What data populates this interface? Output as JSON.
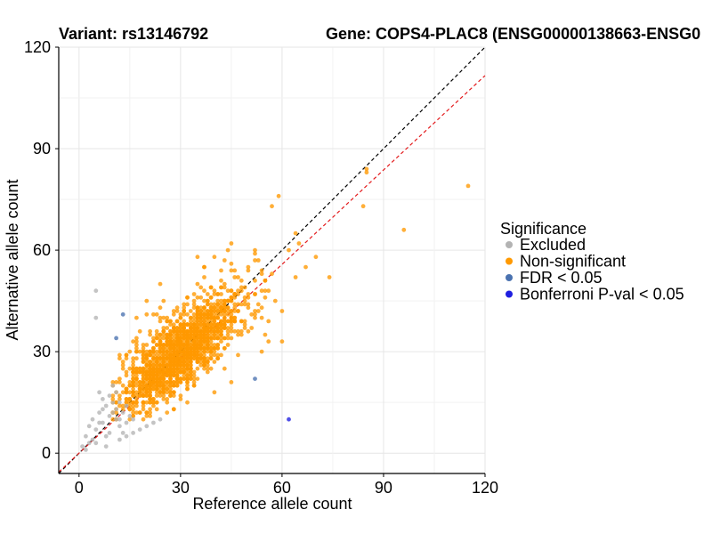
{
  "chart_data": {
    "type": "scatter",
    "title_left": "Variant: rs13146792",
    "title_right": "Gene: COPS4-PLAC8 (ENSG00000138663-ENSG0",
    "xlabel": "Reference allele count",
    "ylabel": "Alternative allele count",
    "xlim": [
      -6,
      120
    ],
    "ylim": [
      -6,
      120
    ],
    "xticks": [
      0,
      30,
      60,
      90,
      120
    ],
    "yticks": [
      0,
      30,
      60,
      90,
      120
    ],
    "grid": true,
    "reference_lines": [
      {
        "name": "identity",
        "slope": 1.0,
        "intercept": 0,
        "color": "#000000",
        "dash": true
      },
      {
        "name": "expected-ratio",
        "slope": 0.93,
        "intercept": 0,
        "color": "#e31a1c",
        "dash": true
      }
    ],
    "legend": {
      "title": "Significance",
      "position": "right",
      "items": [
        {
          "label": "Excluded",
          "color": "#b3b3b3"
        },
        {
          "label": "Non-significant",
          "color": "#ff9900"
        },
        {
          "label": "FDR < 0.05",
          "color": "#4a72b0"
        },
        {
          "label": "Bonferroni P-val < 0.05",
          "color": "#1f1fe0"
        }
      ]
    },
    "series": [
      {
        "name": "Excluded",
        "color": "#b3b3b3",
        "points": [
          [
            5,
            48
          ],
          [
            5,
            40
          ],
          [
            1,
            2
          ],
          [
            2,
            5
          ],
          [
            3,
            8
          ],
          [
            4,
            10
          ],
          [
            5,
            7
          ],
          [
            6,
            12
          ],
          [
            7,
            9
          ],
          [
            8,
            14
          ],
          [
            9,
            11
          ],
          [
            10,
            15
          ],
          [
            11,
            13
          ],
          [
            12,
            8
          ],
          [
            6,
            18
          ],
          [
            7,
            16
          ],
          [
            4,
            4
          ],
          [
            3,
            3
          ],
          [
            8,
            5
          ],
          [
            9,
            6
          ],
          [
            10,
            20
          ],
          [
            11,
            18
          ],
          [
            12,
            10
          ],
          [
            13,
            12
          ],
          [
            14,
            9
          ],
          [
            15,
            11
          ],
          [
            16,
            6
          ],
          [
            18,
            7
          ],
          [
            20,
            8
          ],
          [
            22,
            9
          ],
          [
            24,
            10
          ],
          [
            9,
            17
          ],
          [
            10,
            12
          ],
          [
            11,
            10
          ],
          [
            12,
            4
          ],
          [
            7,
            13
          ],
          [
            6,
            9
          ],
          [
            13,
            6
          ],
          [
            14,
            14
          ],
          [
            2,
            1
          ],
          [
            5,
            3
          ],
          [
            8,
            2
          ],
          [
            12,
            15
          ],
          [
            14,
            5
          ],
          [
            16,
            10
          ]
        ]
      },
      {
        "name": "Non-significant",
        "color": "#ff9900",
        "points": [
          [
            59,
            76
          ],
          [
            57,
            73
          ],
          [
            85,
            84
          ],
          [
            85,
            83
          ],
          [
            84,
            73
          ],
          [
            115,
            79
          ],
          [
            96,
            66
          ],
          [
            64,
            65
          ],
          [
            74,
            52
          ],
          [
            67,
            55
          ],
          [
            70,
            58
          ],
          [
            62,
            60
          ],
          [
            65,
            62
          ],
          [
            55,
            48
          ],
          [
            55,
            35
          ],
          [
            48,
            49
          ],
          [
            50,
            55
          ],
          [
            45,
            62
          ],
          [
            44,
            60
          ],
          [
            40,
            58
          ],
          [
            35,
            58
          ],
          [
            37,
            52
          ],
          [
            42,
            54
          ],
          [
            38,
            47
          ],
          [
            45,
            45
          ],
          [
            28,
            42
          ],
          [
            25,
            45
          ],
          [
            24,
            50
          ],
          [
            22,
            41
          ],
          [
            20,
            45
          ],
          [
            17,
            40
          ],
          [
            15,
            30
          ],
          [
            14,
            28
          ],
          [
            12,
            22
          ],
          [
            12,
            14
          ],
          [
            10,
            16
          ],
          [
            18,
            36
          ],
          [
            16,
            33
          ],
          [
            13,
            25
          ],
          [
            16,
            20
          ],
          [
            19,
            14
          ],
          [
            21,
            13
          ],
          [
            23,
            15
          ],
          [
            26,
            12
          ],
          [
            24,
            18
          ],
          [
            60,
            42
          ],
          [
            58,
            45
          ],
          [
            52,
            40
          ],
          [
            64,
            52
          ],
          [
            60,
            33
          ],
          [
            56,
            33
          ],
          [
            54,
            30
          ],
          [
            45,
            21
          ],
          [
            40,
            18
          ],
          [
            38,
            25
          ]
        ]
      },
      {
        "name": "FDR < 0.05",
        "color": "#4a72b0",
        "points": [
          [
            13,
            41
          ],
          [
            11,
            34
          ],
          [
            52,
            22
          ]
        ]
      },
      {
        "name": "Bonferroni P-val < 0.05",
        "color": "#1f1fe0",
        "points": [
          [
            62,
            10
          ]
        ]
      }
    ],
    "dense_cloud": {
      "series": "Non-significant",
      "count": 1700,
      "ref_center": 30,
      "alt_center": 30,
      "ref_sd": 9,
      "alt_sd": 9,
      "correlation": 0.78
    }
  }
}
